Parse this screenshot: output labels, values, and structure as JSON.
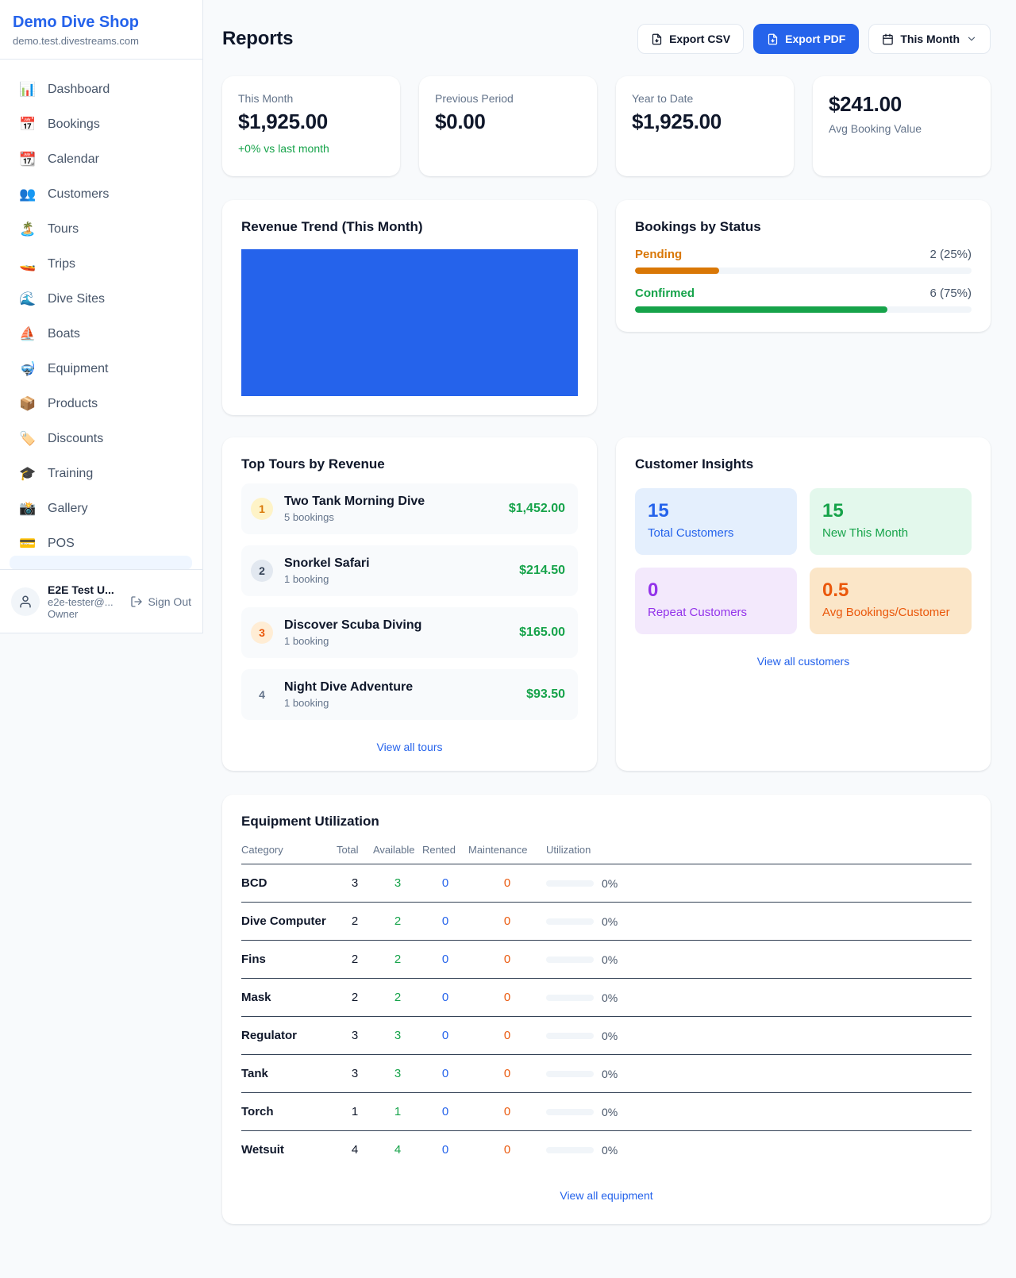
{
  "brand": {
    "name": "Demo Dive Shop",
    "domain": "demo.test.divestreams.com"
  },
  "colors": {
    "accent_blue": "#2563eb",
    "green": "#16a34a",
    "amber": "#d97706",
    "orange": "#ea580c",
    "purple": "#9333ea",
    "text_dark": "#0f172a",
    "text_gray": "#64748b"
  },
  "sidebar": {
    "items": [
      {
        "icon": "📊",
        "label": "Dashboard"
      },
      {
        "icon": "📅",
        "label": "Bookings"
      },
      {
        "icon": "📆",
        "label": "Calendar"
      },
      {
        "icon": "👥",
        "label": "Customers"
      },
      {
        "icon": "🏝️",
        "label": "Tours"
      },
      {
        "icon": "🚤",
        "label": "Trips"
      },
      {
        "icon": "🌊",
        "label": "Dive Sites"
      },
      {
        "icon": "⛵",
        "label": "Boats"
      },
      {
        "icon": "🤿",
        "label": "Equipment"
      },
      {
        "icon": "📦",
        "label": "Products"
      },
      {
        "icon": "🏷️",
        "label": "Discounts"
      },
      {
        "icon": "🎓",
        "label": "Training"
      },
      {
        "icon": "📸",
        "label": "Gallery"
      },
      {
        "icon": "💳",
        "label": "POS"
      }
    ],
    "user": {
      "name": "E2E Test U...",
      "email": "e2e-tester@...",
      "role": "Owner",
      "sign_out_label": "Sign Out"
    }
  },
  "header": {
    "title": "Reports",
    "export_csv_label": "Export CSV",
    "export_pdf_label": "Export PDF",
    "period_label": "This Month"
  },
  "stats": [
    {
      "label": "This Month",
      "value": "$1,925.00",
      "delta": "+0% vs last month"
    },
    {
      "label": "Previous Period",
      "value": "$0.00"
    },
    {
      "label": "Year to Date",
      "value": "$1,925.00"
    },
    {
      "label": "Avg Booking Value",
      "value": "$241.00"
    }
  ],
  "revenue_trend": {
    "title": "Revenue Trend (This Month)"
  },
  "chart_data": {
    "type": "bar",
    "title": "Revenue Trend (This Month)",
    "categories": [
      "This Month"
    ],
    "values": [
      1925
    ],
    "color": "#2563eb",
    "note": "single bar filling entire plot area, no axes or labels visible"
  },
  "bookings_by_status": {
    "title": "Bookings by Status",
    "rows": [
      {
        "label": "Pending",
        "value": "2 (25%)",
        "pct": 25,
        "color": "#d97706"
      },
      {
        "label": "Confirmed",
        "value": "6 (75%)",
        "pct": 75,
        "color": "#16a34a"
      }
    ]
  },
  "top_tours": {
    "title": "Top Tours by Revenue",
    "rows": [
      {
        "rank": "1",
        "name": "Two Tank Morning Dive",
        "sub": "5 bookings",
        "amount": "$1,452.00",
        "badge_bg": "#fef3c7",
        "badge_color": "#d97706"
      },
      {
        "rank": "2",
        "name": "Snorkel Safari",
        "sub": "1 booking",
        "amount": "$214.50",
        "badge_bg": "#e2e8f0",
        "badge_color": "#334155"
      },
      {
        "rank": "3",
        "name": "Discover Scuba Diving",
        "sub": "1 booking",
        "amount": "$165.00",
        "badge_bg": "#ffedd5",
        "badge_color": "#ea580c"
      },
      {
        "rank": "4",
        "name": "Night Dive Adventure",
        "sub": "1 booking",
        "amount": "$93.50",
        "badge_bg": "transparent",
        "badge_color": "#64748b"
      }
    ],
    "view_all": "View all tours"
  },
  "customer_insights": {
    "title": "Customer Insights",
    "tiles": [
      {
        "value": "15",
        "label": "Total Customers",
        "bg": "#e4effd",
        "color": "#2563eb"
      },
      {
        "value": "15",
        "label": "New This Month",
        "bg": "#e3f8ec",
        "color": "#16a34a"
      },
      {
        "value": "0",
        "label": "Repeat Customers",
        "bg": "#f3e9fc",
        "color": "#9333ea"
      },
      {
        "value": "0.5",
        "label": "Avg Bookings/Customer",
        "bg": "#fbe6c8",
        "color": "#ea580c"
      }
    ],
    "view_all": "View all customers"
  },
  "equipment": {
    "title": "Equipment Utilization",
    "columns": [
      "Category",
      "Total",
      "Available",
      "Rented",
      "Maintenance",
      "Utilization"
    ],
    "rows": [
      {
        "category": "BCD",
        "total": "3",
        "available": "3",
        "rented": "0",
        "maintenance": "0",
        "util_pct": 0,
        "util_label": "0%"
      },
      {
        "category": "Dive Computer",
        "total": "2",
        "available": "2",
        "rented": "0",
        "maintenance": "0",
        "util_pct": 0,
        "util_label": "0%"
      },
      {
        "category": "Fins",
        "total": "2",
        "available": "2",
        "rented": "0",
        "maintenance": "0",
        "util_pct": 0,
        "util_label": "0%"
      },
      {
        "category": "Mask",
        "total": "2",
        "available": "2",
        "rented": "0",
        "maintenance": "0",
        "util_pct": 0,
        "util_label": "0%"
      },
      {
        "category": "Regulator",
        "total": "3",
        "available": "3",
        "rented": "0",
        "maintenance": "0",
        "util_pct": 0,
        "util_label": "0%"
      },
      {
        "category": "Tank",
        "total": "3",
        "available": "3",
        "rented": "0",
        "maintenance": "0",
        "util_pct": 0,
        "util_label": "0%"
      },
      {
        "category": "Torch",
        "total": "1",
        "available": "1",
        "rented": "0",
        "maintenance": "0",
        "util_pct": 0,
        "util_label": "0%"
      },
      {
        "category": "Wetsuit",
        "total": "4",
        "available": "4",
        "rented": "0",
        "maintenance": "0",
        "util_pct": 0,
        "util_label": "0%"
      }
    ],
    "view_all": "View all equipment"
  }
}
